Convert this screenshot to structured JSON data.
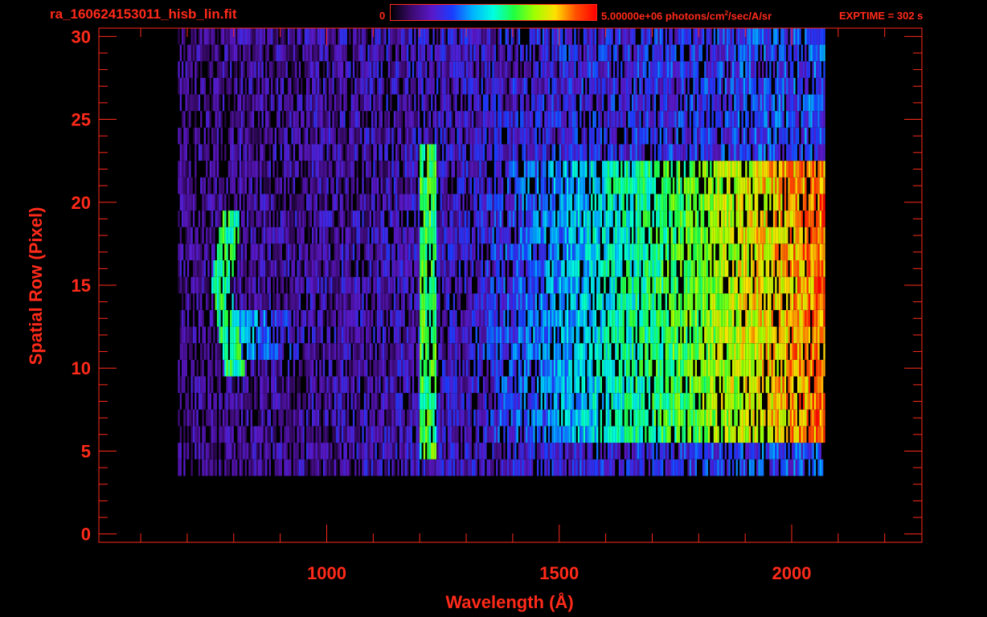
{
  "header": {
    "filename": "ra_160624153011_hisb_lin.fit",
    "colorbar_min_label": "0",
    "colorbar_max_prefix": "5.00000e+06 photons/cm",
    "colorbar_max_exp": "2",
    "colorbar_max_suffix": "/sec/A/sr",
    "exptime": "EXPTIME = 302 s"
  },
  "colors": {
    "axis": "#ff2a1a",
    "background": "#000000",
    "colormap": [
      "#000000",
      "#3a0a6e",
      "#5a18c8",
      "#1a3cff",
      "#00b4ff",
      "#00ffe0",
      "#20ff40",
      "#a0ff00",
      "#ffe000",
      "#ff5000",
      "#ff0000"
    ]
  },
  "chart_data": {
    "type": "heatmap",
    "title": "ra_160624153011_hisb_lin.fit",
    "xlabel": "Wavelength (Å)",
    "ylabel": "Spatial Row (Pixel)",
    "xlim": [
      510,
      2280
    ],
    "ylim": [
      -0.5,
      30.5
    ],
    "xticks": [
      1000,
      1500,
      2000
    ],
    "xtick_labels": [
      "1000",
      "1500",
      "2000"
    ],
    "yticks": [
      0,
      5,
      10,
      15,
      20,
      25,
      30
    ],
    "ytick_labels": [
      "0",
      "5",
      "10",
      "15",
      "20",
      "25",
      "30"
    ],
    "colorbar": {
      "min": 0,
      "max": 5000000,
      "unit": "photons/cm^2/sec/A/sr",
      "scale": "linear"
    },
    "data_extent": {
      "wavelength_min": 680,
      "wavelength_max": 2070,
      "row_min": 4,
      "row_max": 30
    },
    "features": [
      {
        "name": "Lyman-alpha line",
        "wavelength": 1216,
        "rows": [
          5,
          23
        ],
        "intensity": 0.55
      },
      {
        "name": "continuum band",
        "wavelength_range": [
          1700,
          2070
        ],
        "rows": [
          6,
          22
        ],
        "intensity": 0.6
      },
      {
        "name": "arc feature",
        "wavelength_range": [
          770,
          980
        ],
        "rows": [
          10,
          19
        ],
        "intensity": 0.55
      }
    ],
    "grid": false
  }
}
